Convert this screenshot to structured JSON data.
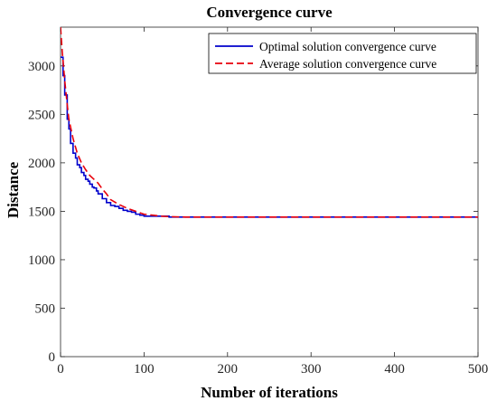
{
  "chart_data": {
    "type": "line",
    "title": "Convergence curve",
    "xlabel": "Number of iterations",
    "ylabel": "Distance",
    "xlim": [
      0,
      500
    ],
    "ylim": [
      0,
      3400
    ],
    "xticks": [
      0,
      100,
      200,
      300,
      400,
      500
    ],
    "yticks": [
      0,
      500,
      1000,
      1500,
      2000,
      2500,
      3000
    ],
    "grid": false,
    "legend_position": "top-right",
    "series": [
      {
        "name": "Optimal solution convergence curve",
        "color": "#0000cc",
        "style": "solid",
        "step": true,
        "x": [
          0,
          3,
          5,
          8,
          10,
          12,
          15,
          18,
          20,
          23,
          25,
          28,
          30,
          33,
          35,
          38,
          40,
          43,
          45,
          50,
          55,
          60,
          65,
          70,
          75,
          80,
          85,
          90,
          95,
          100,
          110,
          120,
          130,
          150,
          200,
          300,
          400,
          500
        ],
        "y": [
          3090,
          2900,
          2700,
          2450,
          2350,
          2200,
          2100,
          2050,
          1980,
          1950,
          1900,
          1870,
          1830,
          1810,
          1780,
          1750,
          1740,
          1710,
          1680,
          1630,
          1590,
          1560,
          1550,
          1530,
          1510,
          1500,
          1490,
          1470,
          1460,
          1450,
          1450,
          1450,
          1440,
          1440,
          1440,
          1440,
          1440,
          1440
        ]
      },
      {
        "name": "Average solution convergence curve",
        "color": "#e8000b",
        "style": "dashed",
        "step": false,
        "x": [
          0,
          2,
          5,
          8,
          10,
          15,
          20,
          25,
          30,
          35,
          40,
          45,
          50,
          55,
          60,
          70,
          80,
          90,
          100,
          110,
          120,
          130,
          150,
          200,
          300,
          400,
          500
        ],
        "y": [
          3400,
          3150,
          2850,
          2600,
          2450,
          2250,
          2100,
          2000,
          1930,
          1870,
          1830,
          1790,
          1730,
          1680,
          1620,
          1570,
          1530,
          1500,
          1470,
          1460,
          1450,
          1445,
          1440,
          1440,
          1440,
          1440,
          1440
        ]
      }
    ]
  }
}
